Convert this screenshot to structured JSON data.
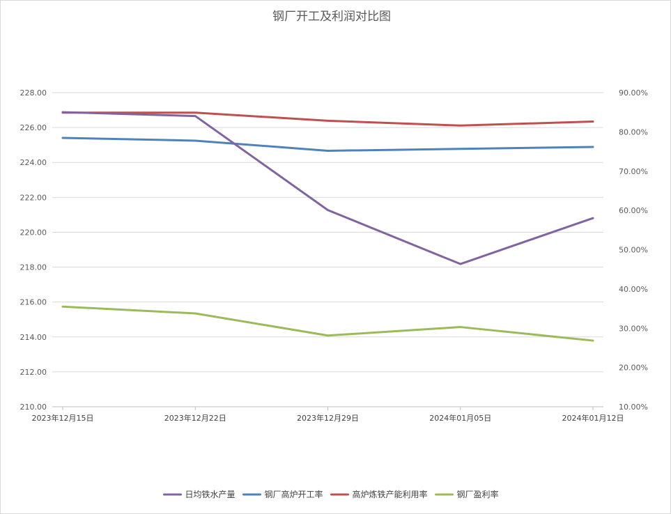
{
  "chart_data": {
    "type": "line",
    "title": "钢厂开工及利润对比图",
    "categories": [
      "2023年12月15日",
      "2023年12月22日",
      "2023年12月29日",
      "2024年01月05日",
      "2024年01月12日"
    ],
    "y_left": {
      "ylim": [
        210,
        228
      ],
      "ticks": [
        "210.00",
        "212.00",
        "214.00",
        "216.00",
        "218.00",
        "220.00",
        "222.00",
        "224.00",
        "226.00",
        "228.00"
      ]
    },
    "y_right": {
      "ylim": [
        0.1,
        0.9
      ],
      "ticks": [
        "10.00%",
        "20.00%",
        "30.00%",
        "40.00%",
        "50.00%",
        "60.00%",
        "70.00%",
        "80.00%",
        "90.00%"
      ]
    },
    "series": [
      {
        "name": "日均铁水产量",
        "axis": "left",
        "color": "#8064a2",
        "values": [
          226.88,
          226.66,
          221.27,
          218.18,
          220.81
        ]
      },
      {
        "name": "钢厂高炉开工率",
        "axis": "right",
        "color": "#4f81bd",
        "values": [
          0.7847,
          0.7777,
          0.7519,
          0.7568,
          0.7617
        ]
      },
      {
        "name": "高炉炼铁产能利用率",
        "axis": "right",
        "color": "#c0504d",
        "values": [
          0.8491,
          0.8491,
          0.8283,
          0.8162,
          0.8263
        ]
      },
      {
        "name": "钢厂盈利率",
        "axis": "right",
        "color": "#9bbb59",
        "values": [
          0.355,
          0.3377,
          0.2814,
          0.303,
          0.2684
        ]
      }
    ],
    "grid": true,
    "legend": "bottom"
  }
}
